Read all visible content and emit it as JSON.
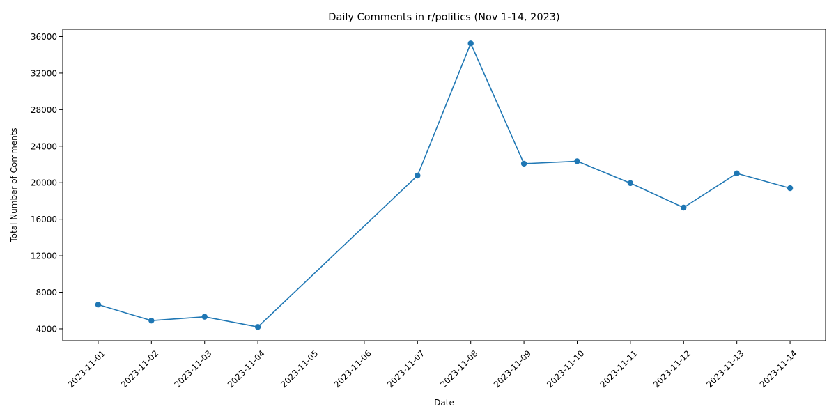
{
  "chart_data": {
    "type": "line",
    "title": "Daily Comments in r/politics (Nov 1-14, 2023)",
    "xlabel": "Date",
    "ylabel": "Total Number of Comments",
    "x_ticks": [
      "2023-11-01",
      "2023-11-02",
      "2023-11-03",
      "2023-11-04",
      "2023-11-05",
      "2023-11-06",
      "2023-11-07",
      "2023-11-08",
      "2023-11-09",
      "2023-11-10",
      "2023-11-11",
      "2023-11-12",
      "2023-11-13",
      "2023-11-14"
    ],
    "xlim": [
      "2023-10-31T08:00",
      "2023-11-14T16:00"
    ],
    "y_ticks": [
      4000,
      8000,
      12000,
      16000,
      20000,
      24000,
      28000,
      32000,
      36000
    ],
    "ylim": [
      2700,
      36800
    ],
    "grid": false,
    "legend": "none",
    "series": [
      {
        "color": "#1f77b4",
        "marker": "circle",
        "points": [
          {
            "date": "2023-11-01",
            "value": 6650
          },
          {
            "date": "2023-11-02",
            "value": 4900
          },
          {
            "date": "2023-11-03",
            "value": 5320
          },
          {
            "date": "2023-11-04",
            "value": 4200
          },
          {
            "date": "2023-11-07",
            "value": 20780
          },
          {
            "date": "2023-11-08",
            "value": 35250
          },
          {
            "date": "2023-11-09",
            "value": 22080
          },
          {
            "date": "2023-11-10",
            "value": 22350
          },
          {
            "date": "2023-11-11",
            "value": 19950
          },
          {
            "date": "2023-11-12",
            "value": 17270
          },
          {
            "date": "2023-11-13",
            "value": 21020
          },
          {
            "date": "2023-11-14",
            "value": 19400
          }
        ]
      }
    ]
  }
}
